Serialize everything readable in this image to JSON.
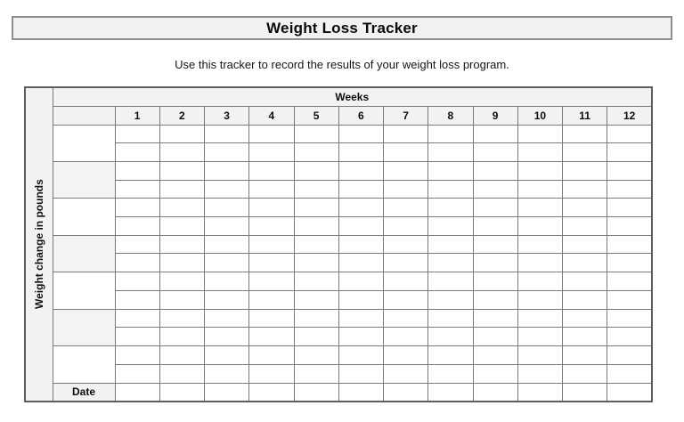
{
  "page": {
    "title": "Weight Loss Tracker",
    "subtitle": "Use this tracker to record the results of your weight loss program."
  },
  "tracker": {
    "weeks_header": "Weeks",
    "week_labels": [
      "1",
      "2",
      "3",
      "4",
      "5",
      "6",
      "7",
      "8",
      "9",
      "10",
      "11",
      "12"
    ],
    "side_label": "Weight change in pounds",
    "date_label": "Date",
    "data_rows": 14,
    "rows_per_band": 2,
    "colors": {
      "header_fill": "#f2f2f2",
      "band_fill": "#f3f3f3",
      "grid_line": "#7a7a7a",
      "outer_line": "#5d5d5d"
    }
  }
}
